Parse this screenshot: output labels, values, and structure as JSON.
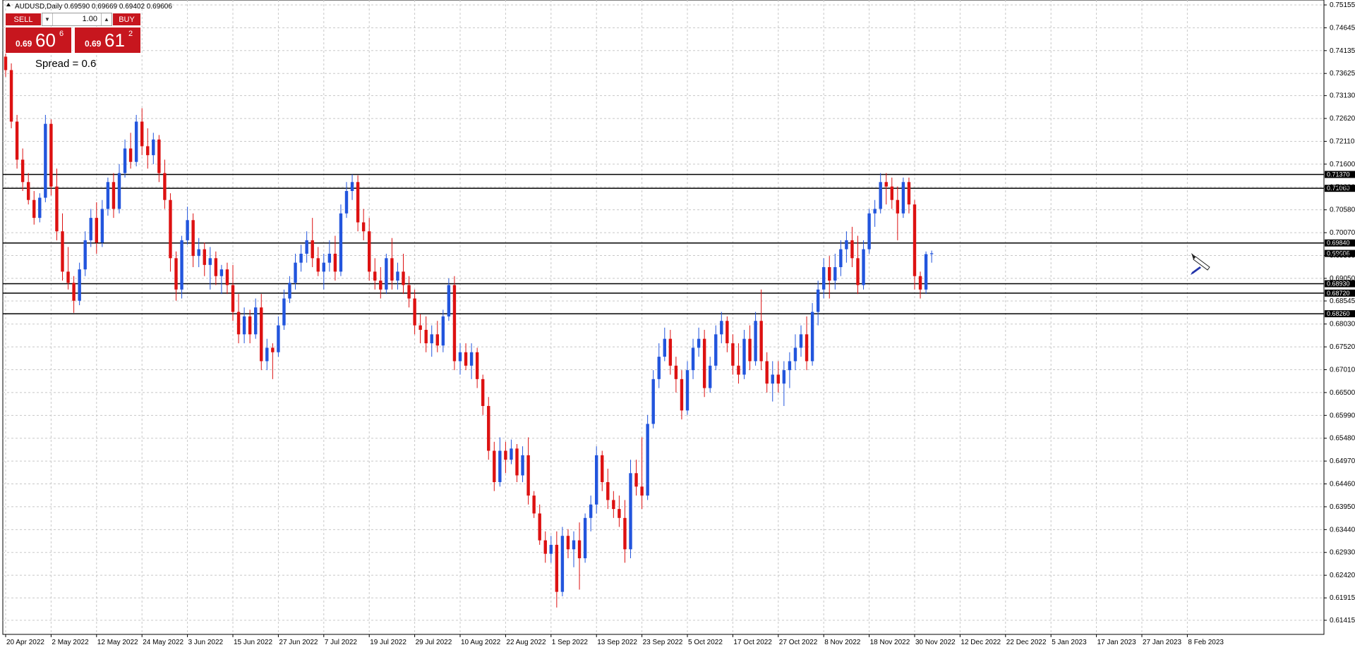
{
  "window": {
    "title": "AUDUSD,Daily  0.69590 0.69669 0.69402 0.69606"
  },
  "trade_panel": {
    "sell_label": "SELL",
    "buy_label": "BUY",
    "lot": "1.00",
    "sell": {
      "small": "0.69",
      "big": "60",
      "sup": "6"
    },
    "buy": {
      "small": "0.69",
      "big": "61",
      "sup": "2"
    },
    "spread": "Spread = 0.6",
    "color": "#c7161e"
  },
  "chart_data": {
    "type": "candlestick",
    "symbol": "AUDUSD",
    "timeframe": "Daily",
    "ohlc_header": [
      0.6959,
      0.69669,
      0.69402,
      0.69606
    ],
    "grid": true,
    "ylim": [
      0.6114,
      0.7517
    ],
    "y_ticks": [
      "0.75155",
      "0.74645",
      "0.74135",
      "0.73625",
      "0.73130",
      "0.72620",
      "0.72110",
      "0.71600",
      "0.71090",
      "0.70580",
      "0.70070",
      "0.69560",
      "0.69050",
      "0.68545",
      "0.68030",
      "0.67520",
      "0.67010",
      "0.66500",
      "0.65990",
      "0.65480",
      "0.64970",
      "0.64460",
      "0.63950",
      "0.63440",
      "0.62930",
      "0.62420",
      "0.61915",
      "0.61415"
    ],
    "x_labels": [
      "20 Apr 2022",
      "2 May 2022",
      "12 May 2022",
      "24 May 2022",
      "3 Jun 2022",
      "15 Jun 2022",
      "27 Jun 2022",
      "7 Jul 2022",
      "19 Jul 2022",
      "29 Jul 2022",
      "10 Aug 2022",
      "22 Aug 2022",
      "1 Sep 2022",
      "13 Sep 2022",
      "23 Sep 2022",
      "5 Oct 2022",
      "17 Oct 2022",
      "27 Oct 2022",
      "8 Nov 2022",
      "18 Nov 2022",
      "30 Nov 2022",
      "12 Dec 2022",
      "22 Dec 2022",
      "5 Jan 2023",
      "17 Jan 2023",
      "27 Jan 2023",
      "8 Feb 2023"
    ],
    "x_label_positions": [
      0,
      8,
      16,
      24,
      32,
      40,
      48,
      56,
      64,
      72,
      80,
      88,
      96,
      104,
      112,
      120,
      128,
      136,
      144,
      152,
      160,
      168,
      176,
      184,
      192,
      200,
      208
    ],
    "levels": [
      {
        "value": 0.7137,
        "label": "0.71370"
      },
      {
        "value": 0.7106,
        "label": "0.71060"
      },
      {
        "value": 0.6984,
        "label": "0.69840"
      },
      {
        "value": 0.6893,
        "label": "0.68930"
      },
      {
        "value": 0.6872,
        "label": "0.68720"
      },
      {
        "value": 0.6826,
        "label": "0.68260"
      }
    ],
    "current_price": {
      "value": 0.69606,
      "label": "0.69606"
    },
    "colors": {
      "bull": "#2255dd",
      "bear": "#dd1111",
      "grid": "#c8c8c8",
      "label_bg": "#000000"
    },
    "candles": [
      [
        0.74,
        0.741,
        0.7355,
        0.737
      ],
      [
        0.737,
        0.7385,
        0.724,
        0.7255
      ],
      [
        0.7255,
        0.727,
        0.715,
        0.717
      ],
      [
        0.717,
        0.7195,
        0.71,
        0.712
      ],
      [
        0.712,
        0.714,
        0.707,
        0.708
      ],
      [
        0.708,
        0.71,
        0.7025,
        0.704
      ],
      [
        0.704,
        0.7095,
        0.703,
        0.7085
      ],
      [
        0.7085,
        0.727,
        0.7075,
        0.725
      ],
      [
        0.725,
        0.726,
        0.709,
        0.711
      ],
      [
        0.711,
        0.715,
        0.699,
        0.701
      ],
      [
        0.701,
        0.705,
        0.69,
        0.692
      ],
      [
        0.692,
        0.6975,
        0.688,
        0.6895
      ],
      [
        0.6895,
        0.691,
        0.6828,
        0.6855
      ],
      [
        0.6855,
        0.694,
        0.6845,
        0.6925
      ],
      [
        0.6925,
        0.701,
        0.691,
        0.699
      ],
      [
        0.699,
        0.706,
        0.6975,
        0.704
      ],
      [
        0.704,
        0.7075,
        0.696,
        0.6985
      ],
      [
        0.6985,
        0.708,
        0.6975,
        0.706
      ],
      [
        0.706,
        0.713,
        0.7045,
        0.712
      ],
      [
        0.712,
        0.714,
        0.704,
        0.706
      ],
      [
        0.706,
        0.716,
        0.705,
        0.714
      ],
      [
        0.714,
        0.7215,
        0.713,
        0.7195
      ],
      [
        0.7195,
        0.723,
        0.715,
        0.7165
      ],
      [
        0.7165,
        0.727,
        0.7155,
        0.7255
      ],
      [
        0.7255,
        0.7285,
        0.718,
        0.72
      ],
      [
        0.72,
        0.724,
        0.715,
        0.718
      ],
      [
        0.718,
        0.723,
        0.716,
        0.7215
      ],
      [
        0.7215,
        0.7225,
        0.712,
        0.714
      ],
      [
        0.714,
        0.717,
        0.706,
        0.708
      ],
      [
        0.708,
        0.7095,
        0.692,
        0.695
      ],
      [
        0.695,
        0.6965,
        0.6855,
        0.688
      ],
      [
        0.688,
        0.7,
        0.686,
        0.699
      ],
      [
        0.699,
        0.7065,
        0.698,
        0.7035
      ],
      [
        0.7035,
        0.705,
        0.693,
        0.6955
      ],
      [
        0.6955,
        0.6995,
        0.693,
        0.697
      ],
      [
        0.697,
        0.6985,
        0.691,
        0.6935
      ],
      [
        0.6935,
        0.6975,
        0.688,
        0.695
      ],
      [
        0.695,
        0.6965,
        0.689,
        0.691
      ],
      [
        0.691,
        0.6935,
        0.687,
        0.6925
      ],
      [
        0.6925,
        0.694,
        0.687,
        0.689
      ],
      [
        0.689,
        0.6935,
        0.681,
        0.683
      ],
      [
        0.683,
        0.687,
        0.676,
        0.678
      ],
      [
        0.678,
        0.684,
        0.676,
        0.682
      ],
      [
        0.682,
        0.6835,
        0.676,
        0.678
      ],
      [
        0.678,
        0.686,
        0.677,
        0.684
      ],
      [
        0.684,
        0.687,
        0.67,
        0.672
      ],
      [
        0.672,
        0.677,
        0.67,
        0.675
      ],
      [
        0.675,
        0.676,
        0.668,
        0.674
      ],
      [
        0.674,
        0.682,
        0.673,
        0.68
      ],
      [
        0.68,
        0.688,
        0.679,
        0.686
      ],
      [
        0.686,
        0.691,
        0.685,
        0.6895
      ],
      [
        0.6895,
        0.696,
        0.688,
        0.694
      ],
      [
        0.694,
        0.698,
        0.692,
        0.696
      ],
      [
        0.696,
        0.701,
        0.694,
        0.699
      ],
      [
        0.699,
        0.704,
        0.693,
        0.695
      ],
      [
        0.695,
        0.6975,
        0.691,
        0.692
      ],
      [
        0.692,
        0.696,
        0.688,
        0.694
      ],
      [
        0.694,
        0.699,
        0.692,
        0.696
      ],
      [
        0.696,
        0.7,
        0.69,
        0.692
      ],
      [
        0.692,
        0.707,
        0.691,
        0.705
      ],
      [
        0.705,
        0.712,
        0.704,
        0.71
      ],
      [
        0.71,
        0.7137,
        0.708,
        0.712
      ],
      [
        0.712,
        0.7135,
        0.701,
        0.703
      ],
      [
        0.703,
        0.706,
        0.699,
        0.701
      ],
      [
        0.701,
        0.704,
        0.69,
        0.692
      ],
      [
        0.692,
        0.695,
        0.688,
        0.69
      ],
      [
        0.69,
        0.693,
        0.686,
        0.688
      ],
      [
        0.688,
        0.696,
        0.687,
        0.695
      ],
      [
        0.695,
        0.6995,
        0.688,
        0.69
      ],
      [
        0.69,
        0.694,
        0.688,
        0.692
      ],
      [
        0.692,
        0.696,
        0.687,
        0.689
      ],
      [
        0.689,
        0.691,
        0.684,
        0.686
      ],
      [
        0.686,
        0.688,
        0.678,
        0.68
      ],
      [
        0.68,
        0.6825,
        0.676,
        0.679
      ],
      [
        0.679,
        0.682,
        0.674,
        0.676
      ],
      [
        0.676,
        0.68,
        0.673,
        0.678
      ],
      [
        0.678,
        0.681,
        0.674,
        0.6755
      ],
      [
        0.6755,
        0.6835,
        0.674,
        0.682
      ],
      [
        0.682,
        0.6905,
        0.681,
        0.689
      ],
      [
        0.689,
        0.691,
        0.67,
        0.672
      ],
      [
        0.672,
        0.676,
        0.669,
        0.674
      ],
      [
        0.674,
        0.676,
        0.67,
        0.671
      ],
      [
        0.671,
        0.676,
        0.668,
        0.674
      ],
      [
        0.674,
        0.675,
        0.666,
        0.668
      ],
      [
        0.668,
        0.669,
        0.66,
        0.662
      ],
      [
        0.662,
        0.664,
        0.65,
        0.652
      ],
      [
        0.652,
        0.654,
        0.643,
        0.645
      ],
      [
        0.645,
        0.655,
        0.644,
        0.652
      ],
      [
        0.652,
        0.654,
        0.647,
        0.65
      ],
      [
        0.65,
        0.6545,
        0.649,
        0.6525
      ],
      [
        0.6525,
        0.6535,
        0.645,
        0.6465
      ],
      [
        0.6465,
        0.653,
        0.645,
        0.651
      ],
      [
        0.651,
        0.655,
        0.64,
        0.642
      ],
      [
        0.642,
        0.643,
        0.637,
        0.638
      ],
      [
        0.638,
        0.64,
        0.631,
        0.632
      ],
      [
        0.632,
        0.634,
        0.627,
        0.629
      ],
      [
        0.629,
        0.633,
        0.627,
        0.631
      ],
      [
        0.631,
        0.634,
        0.617,
        0.6205
      ],
      [
        0.6205,
        0.635,
        0.6195,
        0.633
      ],
      [
        0.633,
        0.6345,
        0.628,
        0.63
      ],
      [
        0.63,
        0.634,
        0.626,
        0.632
      ],
      [
        0.632,
        0.636,
        0.621,
        0.628
      ],
      [
        0.628,
        0.638,
        0.627,
        0.637
      ],
      [
        0.637,
        0.642,
        0.634,
        0.64
      ],
      [
        0.64,
        0.653,
        0.638,
        0.651
      ],
      [
        0.651,
        0.652,
        0.643,
        0.645
      ],
      [
        0.645,
        0.648,
        0.639,
        0.641
      ],
      [
        0.641,
        0.643,
        0.637,
        0.639
      ],
      [
        0.639,
        0.642,
        0.635,
        0.637
      ],
      [
        0.637,
        0.641,
        0.627,
        0.63
      ],
      [
        0.63,
        0.65,
        0.628,
        0.647
      ],
      [
        0.647,
        0.65,
        0.642,
        0.644
      ],
      [
        0.644,
        0.655,
        0.639,
        0.642
      ],
      [
        0.642,
        0.66,
        0.641,
        0.658
      ],
      [
        0.658,
        0.67,
        0.657,
        0.668
      ],
      [
        0.668,
        0.676,
        0.666,
        0.673
      ],
      [
        0.673,
        0.6795,
        0.672,
        0.677
      ],
      [
        0.677,
        0.679,
        0.669,
        0.671
      ],
      [
        0.671,
        0.673,
        0.665,
        0.668
      ],
      [
        0.668,
        0.67,
        0.659,
        0.661
      ],
      [
        0.661,
        0.672,
        0.66,
        0.67
      ],
      [
        0.67,
        0.677,
        0.668,
        0.675
      ],
      [
        0.675,
        0.6795,
        0.673,
        0.677
      ],
      [
        0.677,
        0.679,
        0.664,
        0.666
      ],
      [
        0.666,
        0.673,
        0.665,
        0.671
      ],
      [
        0.671,
        0.68,
        0.67,
        0.678
      ],
      [
        0.678,
        0.683,
        0.676,
        0.681
      ],
      [
        0.681,
        0.682,
        0.674,
        0.676
      ],
      [
        0.676,
        0.678,
        0.669,
        0.671
      ],
      [
        0.671,
        0.676,
        0.667,
        0.669
      ],
      [
        0.669,
        0.679,
        0.668,
        0.677
      ],
      [
        0.677,
        0.68,
        0.67,
        0.672
      ],
      [
        0.672,
        0.683,
        0.671,
        0.681
      ],
      [
        0.681,
        0.688,
        0.67,
        0.672
      ],
      [
        0.672,
        0.674,
        0.665,
        0.667
      ],
      [
        0.667,
        0.672,
        0.663,
        0.669
      ],
      [
        0.669,
        0.672,
        0.665,
        0.667
      ],
      [
        0.667,
        0.672,
        0.662,
        0.67
      ],
      [
        0.67,
        0.674,
        0.666,
        0.672
      ],
      [
        0.672,
        0.678,
        0.67,
        0.675
      ],
      [
        0.675,
        0.68,
        0.673,
        0.678
      ],
      [
        0.678,
        0.682,
        0.67,
        0.672
      ],
      [
        0.672,
        0.685,
        0.671,
        0.683
      ],
      [
        0.683,
        0.69,
        0.68,
        0.688
      ],
      [
        0.688,
        0.695,
        0.686,
        0.693
      ],
      [
        0.693,
        0.6955,
        0.686,
        0.69
      ],
      [
        0.69,
        0.696,
        0.688,
        0.693
      ],
      [
        0.693,
        0.699,
        0.691,
        0.697
      ],
      [
        0.697,
        0.701,
        0.694,
        0.699
      ],
      [
        0.699,
        0.702,
        0.693,
        0.695
      ],
      [
        0.695,
        0.7,
        0.687,
        0.689
      ],
      [
        0.689,
        0.699,
        0.688,
        0.697
      ],
      [
        0.697,
        0.706,
        0.696,
        0.705
      ],
      [
        0.705,
        0.708,
        0.702,
        0.706
      ],
      [
        0.706,
        0.714,
        0.705,
        0.712
      ],
      [
        0.712,
        0.714,
        0.707,
        0.711
      ],
      [
        0.711,
        0.713,
        0.706,
        0.708
      ],
      [
        0.708,
        0.711,
        0.699,
        0.705
      ],
      [
        0.705,
        0.713,
        0.704,
        0.712
      ],
      [
        0.712,
        0.713,
        0.705,
        0.707
      ],
      [
        0.707,
        0.708,
        0.688,
        0.691
      ],
      [
        0.691,
        0.692,
        0.686,
        0.688
      ],
      [
        0.688,
        0.6965,
        0.687,
        0.6959
      ],
      [
        0.6959,
        0.6967,
        0.694,
        0.6961
      ]
    ]
  }
}
